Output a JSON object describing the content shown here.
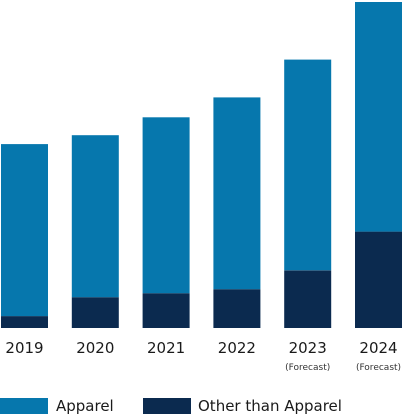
{
  "chart_data": {
    "type": "bar",
    "stacked": true,
    "title": "",
    "xlabel": "",
    "ylabel": "",
    "categories": [
      "2019",
      "2020",
      "2021",
      "2022",
      "2023",
      "2024"
    ],
    "category_notes": [
      "",
      "",
      "",
      "",
      "(Forecast)",
      "(Forecast)"
    ],
    "ylim": [
      0,
      330
    ],
    "grid": false,
    "legend_position": "bottom-left",
    "series": [
      {
        "name": "Other than Apparel",
        "color": "#0b2a4f",
        "values": [
          12,
          31,
          35,
          39,
          58,
          97
        ]
      },
      {
        "name": "Apparel",
        "color": "#0677ad",
        "values": [
          173,
          163,
          177,
          193,
          212,
          231
        ]
      }
    ]
  },
  "legend": {
    "items": [
      {
        "label": "Apparel",
        "color": "#0677ad"
      },
      {
        "label": "Other than Apparel",
        "color": "#0b2a4f"
      }
    ]
  }
}
